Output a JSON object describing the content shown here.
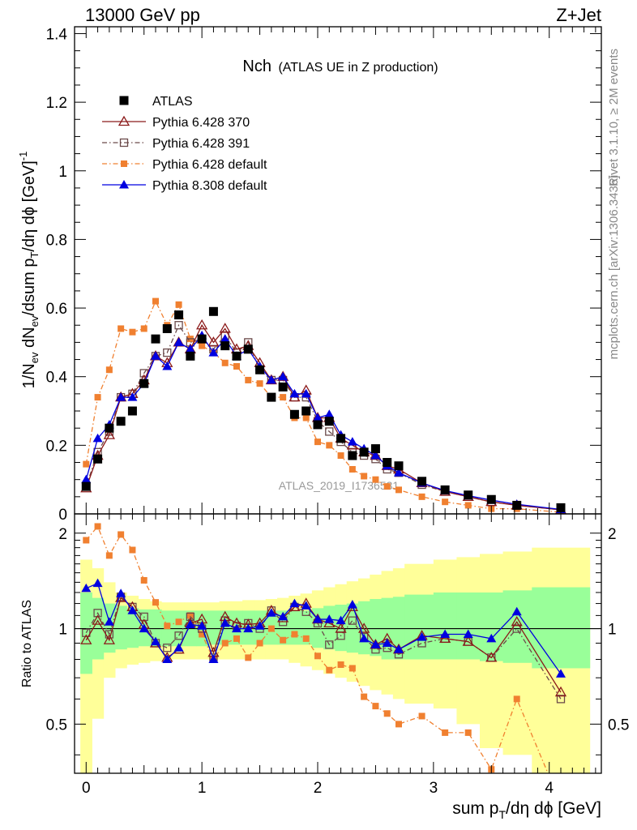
{
  "header": {
    "left": "13000 GeV pp",
    "right": "Z+Jet"
  },
  "plot_title": {
    "main": "Nch",
    "sub": "(ATLAS UE in Z production)"
  },
  "side_labels": {
    "rivet": "Rivet 3.1.10, ≥ 2M events",
    "mcplots": "mcplots.cern.ch [arXiv:1306.3436]"
  },
  "watermark": "ATLAS_2019_I1736531",
  "colors": {
    "atlas": "#000000",
    "p370": "#8b1a1a",
    "p391": "#6b4a4a",
    "p6def": "#f08030",
    "p8def": "#0000e0",
    "band_green": "#99ff99",
    "band_yellow": "#ffff99"
  },
  "chart_data": [
    {
      "type": "scatter",
      "panel": "main",
      "ylabel": "1/N_ev dN_ev/dsum p_T/dη dϕ [GeV]^-1",
      "xlim": [
        -0.1,
        4.45
      ],
      "ylim": [
        0,
        1.42
      ],
      "yticks": [
        "0",
        "0.2",
        "0.4",
        "0.6",
        "0.8",
        "1",
        "1.2",
        "1.4"
      ],
      "yticks_values": [
        0,
        0.2,
        0.4,
        0.6,
        0.8,
        1,
        1.2,
        1.4
      ],
      "x": [
        0.0,
        0.1,
        0.2,
        0.3,
        0.4,
        0.5,
        0.6,
        0.7,
        0.8,
        0.9,
        1.0,
        1.1,
        1.2,
        1.3,
        1.4,
        1.5,
        1.6,
        1.7,
        1.8,
        1.9,
        2.0,
        2.1,
        2.2,
        2.3,
        2.4,
        2.5,
        2.6,
        2.7,
        2.9,
        3.1,
        3.3,
        3.5,
        3.72,
        4.1
      ],
      "series": [
        {
          "name": "ATLAS",
          "style": "square-filled",
          "values": [
            0.08,
            0.16,
            0.25,
            0.27,
            0.3,
            0.38,
            0.51,
            0.54,
            0.58,
            0.46,
            0.51,
            0.59,
            0.49,
            0.46,
            0.48,
            0.42,
            0.34,
            0.37,
            0.29,
            0.3,
            0.26,
            0.27,
            0.22,
            0.17,
            0.18,
            0.19,
            0.15,
            0.14,
            0.095,
            0.07,
            0.055,
            0.042,
            0.025,
            0.018
          ]
        },
        {
          "name": "Pythia 6.428 370",
          "style": "triangle-open",
          "values": [
            0.075,
            0.17,
            0.23,
            0.34,
            0.35,
            0.39,
            0.46,
            0.44,
            0.5,
            0.48,
            0.55,
            0.5,
            0.54,
            0.48,
            0.49,
            0.44,
            0.39,
            0.4,
            0.34,
            0.36,
            0.28,
            0.28,
            0.22,
            0.2,
            0.18,
            0.17,
            0.14,
            0.13,
            0.09,
            0.065,
            0.05,
            0.035,
            0.025,
            0.012
          ]
        },
        {
          "name": "Pythia 6.428 391",
          "style": "square-open",
          "values": [
            0.08,
            0.18,
            0.24,
            0.34,
            0.35,
            0.41,
            0.46,
            0.47,
            0.55,
            0.5,
            0.51,
            0.48,
            0.52,
            0.47,
            0.5,
            0.42,
            0.39,
            0.39,
            0.34,
            0.34,
            0.27,
            0.24,
            0.21,
            0.18,
            0.17,
            0.16,
            0.13,
            0.12,
            0.085,
            0.065,
            0.05,
            0.035,
            0.025,
            0.012
          ]
        },
        {
          "name": "Pythia 6.428 default",
          "style": "square-small-filled",
          "values": [
            0.145,
            0.34,
            0.42,
            0.54,
            0.53,
            0.54,
            0.62,
            0.55,
            0.61,
            0.51,
            0.49,
            0.47,
            0.44,
            0.43,
            0.39,
            0.38,
            0.34,
            0.34,
            0.28,
            0.28,
            0.21,
            0.2,
            0.17,
            0.13,
            0.11,
            0.1,
            0.08,
            0.07,
            0.05,
            0.035,
            0.025,
            0.015,
            0.015,
            0.005
          ]
        },
        {
          "name": "Pythia 8.308 default",
          "style": "triangle-filled",
          "values": [
            0.1,
            0.22,
            0.26,
            0.34,
            0.34,
            0.38,
            0.46,
            0.43,
            0.5,
            0.48,
            0.52,
            0.47,
            0.51,
            0.46,
            0.48,
            0.43,
            0.39,
            0.4,
            0.35,
            0.35,
            0.28,
            0.29,
            0.23,
            0.21,
            0.19,
            0.17,
            0.14,
            0.12,
            0.09,
            0.068,
            0.053,
            0.04,
            0.028,
            0.013
          ]
        }
      ]
    },
    {
      "type": "scatter",
      "panel": "ratio",
      "ylabel": "Ratio to ATLAS",
      "xlabel": "sum p_T/dη dϕ [GeV]",
      "xlim": [
        -0.1,
        4.45
      ],
      "ylim": [
        0.35,
        2.3
      ],
      "xticks": [
        "0",
        "1",
        "2",
        "3",
        "4"
      ],
      "xticks_values": [
        0,
        1,
        2,
        3,
        4
      ],
      "yticks": [
        "0.5",
        "1",
        "2"
      ],
      "yticks_values": [
        0.5,
        1,
        2
      ],
      "x": [
        0.0,
        0.1,
        0.2,
        0.3,
        0.4,
        0.5,
        0.6,
        0.7,
        0.8,
        0.9,
        1.0,
        1.1,
        1.2,
        1.3,
        1.4,
        1.5,
        1.6,
        1.7,
        1.8,
        1.9,
        2.0,
        2.1,
        2.2,
        2.3,
        2.4,
        2.5,
        2.6,
        2.7,
        2.9,
        3.1,
        3.3,
        3.5,
        3.72,
        4.1
      ],
      "bands": {
        "edges": [
          -0.05,
          0.05,
          0.15,
          0.25,
          0.35,
          0.45,
          0.55,
          0.65,
          0.75,
          0.85,
          0.95,
          1.05,
          1.15,
          1.25,
          1.35,
          1.45,
          1.55,
          1.65,
          1.75,
          1.85,
          1.95,
          2.05,
          2.15,
          2.25,
          2.35,
          2.45,
          2.55,
          2.65,
          2.75,
          3.0,
          3.2,
          3.4,
          3.6,
          3.85,
          4.35
        ],
        "green_lo": [
          0.72,
          0.8,
          0.84,
          0.86,
          0.87,
          0.88,
          0.88,
          0.88,
          0.88,
          0.88,
          0.88,
          0.89,
          0.89,
          0.89,
          0.89,
          0.89,
          0.89,
          0.89,
          0.89,
          0.89,
          0.87,
          0.86,
          0.85,
          0.84,
          0.83,
          0.82,
          0.8,
          0.8,
          0.8,
          0.8,
          0.8,
          0.79,
          0.78,
          0.75
        ],
        "green_hi": [
          1.3,
          1.25,
          1.2,
          1.18,
          1.16,
          1.15,
          1.15,
          1.14,
          1.14,
          1.14,
          1.14,
          1.14,
          1.14,
          1.14,
          1.14,
          1.14,
          1.14,
          1.14,
          1.14,
          1.14,
          1.16,
          1.18,
          1.19,
          1.2,
          1.22,
          1.24,
          1.25,
          1.26,
          1.28,
          1.3,
          1.3,
          1.3,
          1.32,
          1.35
        ],
        "yellow_lo": [
          0.35,
          0.52,
          0.7,
          0.75,
          0.77,
          0.78,
          0.79,
          0.8,
          0.8,
          0.8,
          0.8,
          0.8,
          0.8,
          0.8,
          0.8,
          0.8,
          0.8,
          0.8,
          0.78,
          0.76,
          0.74,
          0.72,
          0.7,
          0.68,
          0.66,
          0.64,
          0.62,
          0.6,
          0.58,
          0.56,
          0.5,
          0.42,
          0.4,
          0.35
        ],
        "yellow_hi": [
          1.65,
          1.55,
          1.4,
          1.3,
          1.27,
          1.24,
          1.22,
          1.21,
          1.21,
          1.21,
          1.21,
          1.21,
          1.22,
          1.22,
          1.23,
          1.23,
          1.24,
          1.25,
          1.27,
          1.29,
          1.32,
          1.35,
          1.38,
          1.41,
          1.44,
          1.48,
          1.52,
          1.55,
          1.6,
          1.65,
          1.68,
          1.72,
          1.75,
          1.8
        ]
      },
      "series": [
        {
          "name": "Pythia 6.428 370",
          "style": "triangle-open",
          "values": [
            0.92,
            1.06,
            0.92,
            1.25,
            1.17,
            1.03,
            0.9,
            0.81,
            0.86,
            1.04,
            1.07,
            0.84,
            1.09,
            1.04,
            1.03,
            1.04,
            1.14,
            1.08,
            1.17,
            1.2,
            1.07,
            1.04,
            1.0,
            1.17,
            1.0,
            0.89,
            0.93,
            0.86,
            0.95,
            0.93,
            0.91,
            0.81,
            1.05,
            0.63
          ]
        },
        {
          "name": "Pythia 6.428 391",
          "style": "square-open",
          "values": [
            0.97,
            1.12,
            0.96,
            1.26,
            1.17,
            1.09,
            0.9,
            0.87,
            0.95,
            1.09,
            1.0,
            0.81,
            1.06,
            1.02,
            1.04,
            1.0,
            1.14,
            1.05,
            1.17,
            1.13,
            1.04,
            0.89,
            0.95,
            1.06,
            0.94,
            0.86,
            0.87,
            0.83,
            0.9,
            0.93,
            0.91,
            0.81,
            1.0,
            0.6
          ]
        },
        {
          "name": "Pythia 6.428 default",
          "style": "square-small-filled",
          "values": [
            1.9,
            2.1,
            1.7,
            1.98,
            1.77,
            1.42,
            1.21,
            1.02,
            1.05,
            1.1,
            0.96,
            0.8,
            0.9,
            0.93,
            0.81,
            0.9,
            1.0,
            0.92,
            0.96,
            0.93,
            0.82,
            0.74,
            0.77,
            0.75,
            0.61,
            0.57,
            0.54,
            0.5,
            0.53,
            0.47,
            0.47,
            0.36,
            0.6,
            0.28
          ]
        },
        {
          "name": "Pythia 8.308 default",
          "style": "triangle-filled",
          "values": [
            1.34,
            1.39,
            1.05,
            1.29,
            1.14,
            1.0,
            0.91,
            0.8,
            0.87,
            1.03,
            1.02,
            0.8,
            1.04,
            1.0,
            1.0,
            1.02,
            1.12,
            1.09,
            1.2,
            1.18,
            1.07,
            1.07,
            1.06,
            1.19,
            0.93,
            0.89,
            0.9,
            0.86,
            0.94,
            0.96,
            0.96,
            0.93,
            1.13,
            0.72
          ]
        }
      ]
    }
  ]
}
